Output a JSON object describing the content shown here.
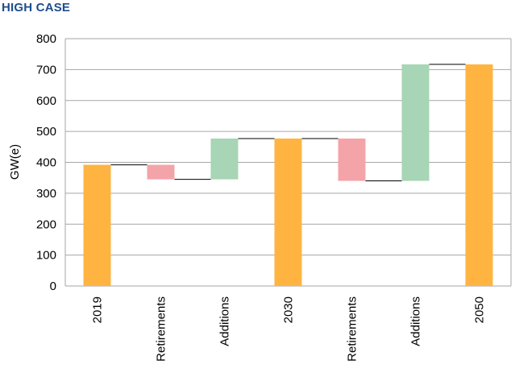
{
  "title": "HIGH CASE",
  "chart_data": {
    "type": "bar",
    "subtype": "waterfall",
    "title": "HIGH CASE",
    "ylabel": "GW(e)",
    "xlabel": "",
    "ylim": [
      0,
      800
    ],
    "yticks": [
      0,
      100,
      200,
      300,
      400,
      500,
      600,
      700,
      800
    ],
    "grid": true,
    "categories": [
      "2019",
      "Retirements",
      "Additions",
      "2030",
      "Retirements",
      "Additions",
      "2050"
    ],
    "bars": [
      {
        "label": "2019",
        "kind": "total",
        "base": 0,
        "top": 392
      },
      {
        "label": "Retirements",
        "kind": "decrease",
        "base": 345,
        "top": 392
      },
      {
        "label": "Additions",
        "kind": "increase",
        "base": 345,
        "top": 477
      },
      {
        "label": "2030",
        "kind": "total",
        "base": 0,
        "top": 477
      },
      {
        "label": "Retirements",
        "kind": "decrease",
        "base": 340,
        "top": 477
      },
      {
        "label": "Additions",
        "kind": "increase",
        "base": 340,
        "top": 717
      },
      {
        "label": "2050",
        "kind": "total",
        "base": 0,
        "top": 717
      }
    ],
    "colors": {
      "total": "#ffb441",
      "decrease": "#f4a4a8",
      "increase": "#a7d5b5",
      "grid": "#a6a6a6",
      "connector": "#000000"
    }
  }
}
